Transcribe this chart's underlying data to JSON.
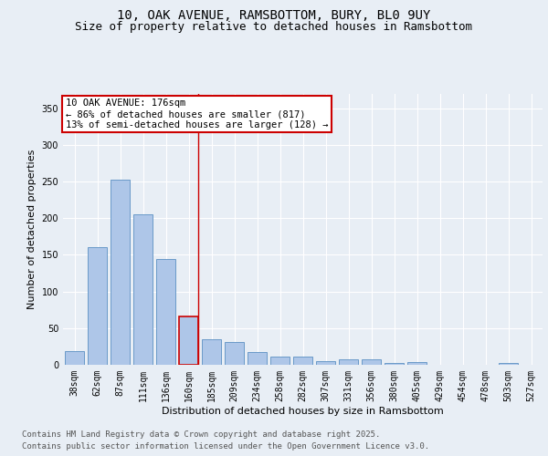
{
  "title_line1": "10, OAK AVENUE, RAMSBOTTOM, BURY, BL0 9UY",
  "title_line2": "Size of property relative to detached houses in Ramsbottom",
  "xlabel": "Distribution of detached houses by size in Ramsbottom",
  "ylabel": "Number of detached properties",
  "categories": [
    "38sqm",
    "62sqm",
    "87sqm",
    "111sqm",
    "136sqm",
    "160sqm",
    "185sqm",
    "209sqm",
    "234sqm",
    "258sqm",
    "282sqm",
    "307sqm",
    "331sqm",
    "356sqm",
    "380sqm",
    "405sqm",
    "429sqm",
    "454sqm",
    "478sqm",
    "503sqm",
    "527sqm"
  ],
  "values": [
    19,
    160,
    252,
    205,
    144,
    66,
    35,
    31,
    18,
    11,
    11,
    5,
    7,
    7,
    3,
    4,
    0,
    0,
    0,
    2,
    0
  ],
  "bar_color": "#aec6e8",
  "bar_edge_color": "#5a8fc2",
  "highlight_bar_index": 5,
  "highlight_bar_edge_color": "#cc0000",
  "vline_color": "#cc0000",
  "annotation_text": "10 OAK AVENUE: 176sqm\n← 86% of detached houses are smaller (817)\n13% of semi-detached houses are larger (128) →",
  "annotation_box_color": "#ffffff",
  "annotation_box_edge_color": "#cc0000",
  "ylim": [
    0,
    370
  ],
  "yticks": [
    0,
    50,
    100,
    150,
    200,
    250,
    300,
    350
  ],
  "background_color": "#e8eef5",
  "plot_background_color": "#e8eef5",
  "grid_color": "#ffffff",
  "footer_line1": "Contains HM Land Registry data © Crown copyright and database right 2025.",
  "footer_line2": "Contains public sector information licensed under the Open Government Licence v3.0.",
  "title_fontsize": 10,
  "subtitle_fontsize": 9,
  "axis_label_fontsize": 8,
  "tick_fontsize": 7,
  "annotation_fontsize": 7.5,
  "footer_fontsize": 6.5
}
